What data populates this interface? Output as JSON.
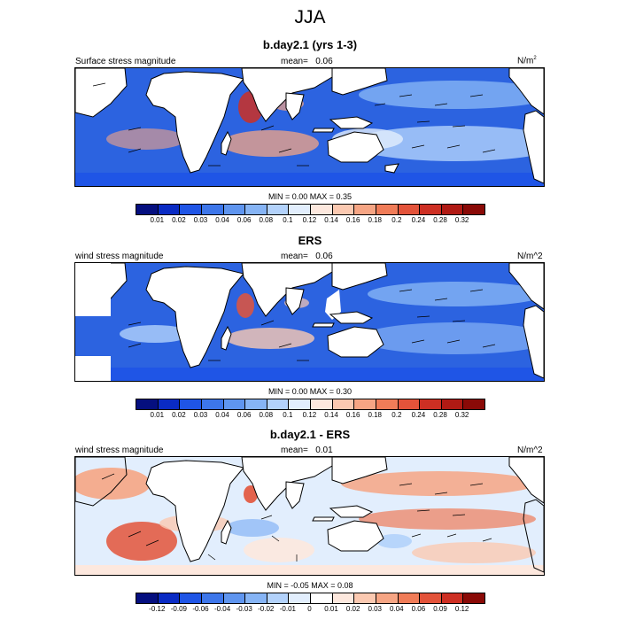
{
  "title": "JJA",
  "palette_seq": [
    "#050f7f",
    "#0a2bc4",
    "#1f55e6",
    "#3d76ea",
    "#5f95ef",
    "#86b4f5",
    "#b3d2fb",
    "#e2eefd",
    "#fde8de",
    "#fbc9b1",
    "#f6a584",
    "#f07c58",
    "#e3533a",
    "#cd2f23",
    "#b01a14",
    "#8a0a07"
  ],
  "palette_div": [
    "#050f7f",
    "#0a2bc4",
    "#1f55e6",
    "#3d76ea",
    "#5f95ef",
    "#86b4f5",
    "#b3d2fb",
    "#e2eefd",
    "#ffffff",
    "#fde8de",
    "#fbc9b1",
    "#f6a584",
    "#f07c58",
    "#e3533a",
    "#cd2f23",
    "#8a0a07"
  ],
  "panels": [
    {
      "title": "b.day2.1 (yrs 1-3)",
      "left_label": "Surface stress magnitude",
      "mean_label": "mean=",
      "mean_value": "0.06",
      "units": "N/m",
      "units_sup": "2",
      "minmax_text": "MIN =   0.00 MAX =   0.35",
      "ticks": [
        "0.01",
        "0.02",
        "0.03",
        "0.04",
        "0.06",
        "0.08",
        "0.1",
        "0.12",
        "0.14",
        "0.16",
        "0.18",
        "0.2",
        "0.24",
        "0.28",
        "0.32"
      ]
    },
    {
      "title": "ERS",
      "left_label": "wind stress magnitude",
      "mean_label": "mean=",
      "mean_value": "0.06",
      "units": "N/m^2",
      "minmax_text": "MIN =   0.00 MAX =   0.30",
      "ticks": [
        "0.01",
        "0.02",
        "0.03",
        "0.04",
        "0.06",
        "0.08",
        "0.1",
        "0.12",
        "0.14",
        "0.16",
        "0.18",
        "0.2",
        "0.24",
        "0.28",
        "0.32"
      ]
    },
    {
      "title": "b.day2.1 - ERS",
      "left_label": "wind stress magnitude",
      "mean_label": "mean=",
      "mean_value": "0.01",
      "units": "N/m^2",
      "minmax_text": "MIN =  -0.05 MAX =   0.08",
      "ticks": [
        "-0.12",
        "-0.09",
        "-0.06",
        "-0.04",
        "-0.03",
        "-0.02",
        "-0.01",
        "0",
        "0.01",
        "0.02",
        "0.03",
        "0.04",
        "0.06",
        "0.09",
        "0.12"
      ]
    }
  ]
}
